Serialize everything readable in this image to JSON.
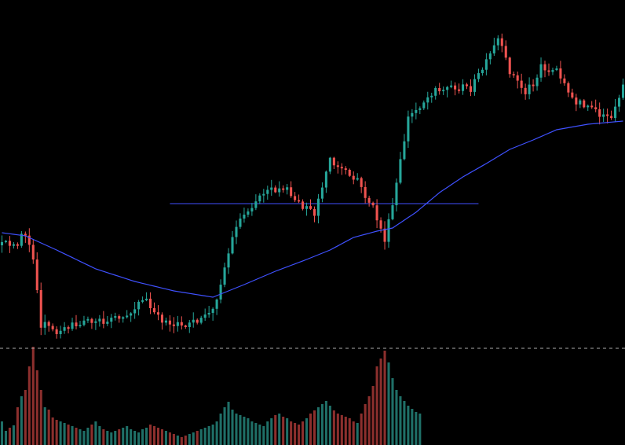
{
  "chart_data": {
    "type": "candlestick",
    "grid": false,
    "legend": "none",
    "y_range": [
      0,
      566
    ],
    "candle_count": 160,
    "colors": {
      "background": "#000000",
      "up": "#26a69a",
      "down": "#ef5350",
      "moving_average": "#3f51ff",
      "horizontal_level": "#3f51ff",
      "dashed_separator": "#aaaaaa"
    },
    "price_path": [
      [
        0,
        312
      ],
      [
        4,
        308
      ],
      [
        6,
        296
      ],
      [
        8,
        332
      ],
      [
        10,
        412
      ],
      [
        14,
        420
      ],
      [
        20,
        412
      ],
      [
        26,
        408
      ],
      [
        32,
        402
      ],
      [
        36,
        380
      ],
      [
        40,
        405
      ],
      [
        46,
        414
      ],
      [
        50,
        410
      ],
      [
        54,
        395
      ],
      [
        57,
        340
      ],
      [
        60,
        285
      ],
      [
        66,
        248
      ],
      [
        72,
        238
      ],
      [
        77,
        262
      ],
      [
        80,
        270
      ],
      [
        84,
        205
      ],
      [
        90,
        225
      ],
      [
        95,
        265
      ],
      [
        98,
        305
      ],
      [
        100,
        262
      ],
      [
        104,
        150
      ],
      [
        110,
        118
      ],
      [
        115,
        110
      ],
      [
        120,
        112
      ],
      [
        124,
        80
      ],
      [
        127,
        50
      ],
      [
        130,
        90
      ],
      [
        134,
        118
      ],
      [
        138,
        86
      ],
      [
        142,
        92
      ],
      [
        146,
        128
      ],
      [
        152,
        142
      ],
      [
        156,
        150
      ],
      [
        159,
        112
      ]
    ],
    "moving_average_path": [
      [
        0,
        296
      ],
      [
        6,
        300
      ],
      [
        14,
        318
      ],
      [
        24,
        342
      ],
      [
        34,
        358
      ],
      [
        44,
        370
      ],
      [
        54,
        378
      ],
      [
        62,
        362
      ],
      [
        70,
        345
      ],
      [
        78,
        330
      ],
      [
        84,
        318
      ],
      [
        90,
        302
      ],
      [
        96,
        294
      ],
      [
        100,
        290
      ],
      [
        106,
        270
      ],
      [
        112,
        245
      ],
      [
        118,
        225
      ],
      [
        124,
        208
      ],
      [
        130,
        190
      ],
      [
        136,
        178
      ],
      [
        142,
        165
      ],
      [
        150,
        158
      ],
      [
        159,
        154
      ]
    ],
    "horizontal_level": {
      "value": 259,
      "from_index": 43,
      "to_index": 122
    },
    "volume_values": [
      30,
      18,
      22,
      25,
      48,
      62,
      70,
      100,
      125,
      95,
      70,
      48,
      45,
      35,
      32,
      30,
      28,
      26,
      24,
      22,
      20,
      18,
      22,
      26,
      30,
      24,
      20,
      18,
      16,
      18,
      20,
      22,
      24,
      20,
      18,
      16,
      20,
      22,
      26,
      24,
      22,
      20,
      18,
      16,
      14,
      12,
      10,
      12,
      14,
      16,
      18,
      20,
      22,
      24,
      26,
      30,
      40,
      48,
      55,
      45,
      40,
      38,
      36,
      34,
      30,
      28,
      26,
      24,
      30,
      34,
      38,
      40,
      36,
      34,
      30,
      28,
      26,
      30,
      34,
      40,
      44,
      48,
      52,
      56,
      50,
      44,
      40,
      38,
      36,
      34,
      30,
      28,
      40,
      52,
      62,
      75,
      100,
      110,
      120,
      105,
      85,
      70,
      62,
      56,
      50,
      46,
      42,
      40,
      36,
      30,
      28,
      26,
      24,
      22,
      20,
      18,
      16,
      14,
      12,
      10,
      8,
      8,
      6,
      6,
      5,
      5,
      4,
      4,
      4,
      4,
      4,
      4,
      4,
      4,
      4,
      4,
      4,
      4,
      4,
      4,
      4,
      4,
      4,
      4,
      4,
      4,
      4,
      4,
      4,
      4,
      4,
      4,
      4,
      4,
      4,
      4,
      4,
      4,
      4,
      4
    ],
    "volume_active_count": 108
  }
}
